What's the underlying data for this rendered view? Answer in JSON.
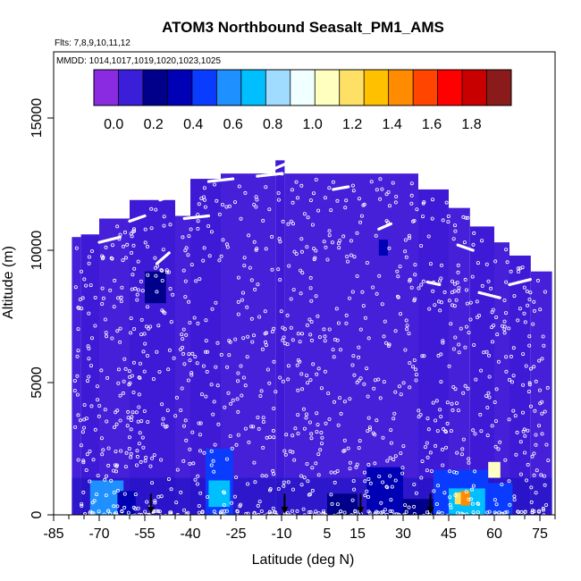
{
  "chart_data": {
    "type": "heatmap",
    "title": "ATOM3 Northbound Seasalt_PM1_AMS",
    "subtitle_flights": "Flts: 7,8,9,10,11,12",
    "subtitle_dates": "MMDD: 1014,1017,1019,1020,1023,1025",
    "xlabel": "Latitude (deg N)",
    "ylabel": "Altitude (m)",
    "xlim": [
      -85,
      80
    ],
    "ylim": [
      0,
      17500
    ],
    "x_tick_labels": [
      "-85",
      "-70",
      "-55",
      "-40",
      "-25",
      "-10",
      "5",
      "15",
      "30",
      "45",
      "60",
      "75"
    ],
    "x_tick_values": [
      -85,
      -70,
      -55,
      -40,
      -25,
      -10,
      5,
      15,
      30,
      45,
      60,
      75
    ],
    "y_tick_labels": [
      "0",
      "5000",
      "10000",
      "15000"
    ],
    "y_tick_values": [
      0,
      5000,
      10000,
      15000
    ],
    "colorbar": {
      "range": [
        -0.1,
        2.0
      ],
      "tick_labels": [
        "0.0",
        "0.2",
        "0.4",
        "0.6",
        "0.8",
        "1.0",
        "1.2",
        "1.4",
        "1.6",
        "1.8"
      ],
      "tick_values": [
        0,
        0.2,
        0.4,
        0.6,
        0.8,
        1.0,
        1.2,
        1.4,
        1.6,
        1.8
      ],
      "colors": [
        "#8a2be2",
        "#3a1ed8",
        "#00008b",
        "#0000b4",
        "#0a3cff",
        "#1e90ff",
        "#00bfff",
        "#9fdcff",
        "#f0ffff",
        "#ffffc0",
        "#ffe066",
        "#ffc000",
        "#ff8c00",
        "#ff4500",
        "#ff0000",
        "#c80000",
        "#8b1a1a"
      ]
    },
    "background_value": 0.05,
    "column_tops": [
      {
        "x0": -79,
        "x1": -76,
        "top": 10500
      },
      {
        "x0": -76,
        "x1": -70,
        "top": 10600
      },
      {
        "x0": -70,
        "x1": -60,
        "top": 11200
      },
      {
        "x0": -60,
        "x1": -45,
        "top": 11900
      },
      {
        "x0": -45,
        "x1": -40,
        "top": 11300
      },
      {
        "x0": -40,
        "x1": -30,
        "top": 12700
      },
      {
        "x0": -30,
        "x1": -12,
        "top": 12900
      },
      {
        "x0": -12,
        "x1": -9,
        "top": 13400
      },
      {
        "x0": -9,
        "x1": 35,
        "top": 12900
      },
      {
        "x0": 35,
        "x1": 45,
        "top": 12300
      },
      {
        "x0": 45,
        "x1": 52,
        "top": 11600
      },
      {
        "x0": 52,
        "x1": 60,
        "top": 10900
      },
      {
        "x0": 60,
        "x1": 65,
        "top": 10300
      },
      {
        "x0": 65,
        "x1": 72,
        "top": 9800
      },
      {
        "x0": 72,
        "x1": 79,
        "top": 9200
      }
    ],
    "hotspots": [
      {
        "x0": -73,
        "x1": -62,
        "y0": 0,
        "y1": 1300,
        "value": 0.55
      },
      {
        "x0": -64,
        "x1": -58,
        "y0": 0,
        "y1": 900,
        "value": 0.35
      },
      {
        "x0": -35,
        "x1": -26,
        "y0": 0,
        "y1": 2500,
        "value": 0.5
      },
      {
        "x0": -34,
        "x1": -27,
        "y0": 300,
        "y1": 1300,
        "value": 0.75
      },
      {
        "x0": 18,
        "x1": 30,
        "y0": 0,
        "y1": 1800,
        "value": 0.3
      },
      {
        "x0": 40,
        "x1": 58,
        "y0": 0,
        "y1": 1700,
        "value": 0.45
      },
      {
        "x0": 45,
        "x1": 57,
        "y0": 0,
        "y1": 1000,
        "value": 0.7
      },
      {
        "x0": 49,
        "x1": 52,
        "y0": 350,
        "y1": 900,
        "value": 1.45
      },
      {
        "x0": 47,
        "x1": 49,
        "y0": 400,
        "y1": 850,
        "value": 1.15
      },
      {
        "x0": 58,
        "x1": 62,
        "y0": 1400,
        "y1": 2000,
        "value": 1.1
      },
      {
        "x0": 58,
        "x1": 66,
        "y0": 0,
        "y1": 1200,
        "value": 0.4
      },
      {
        "x0": 5,
        "x1": 15,
        "y0": 0,
        "y1": 800,
        "value": 0.25
      },
      {
        "x0": 22,
        "x1": 25,
        "y0": 9800,
        "y1": 10400,
        "value": 0.3
      },
      {
        "x0": -55,
        "x1": -48,
        "y0": 8000,
        "y1": 9200,
        "value": 0.15
      },
      {
        "x0": 30,
        "x1": 40,
        "y0": 0,
        "y1": 600,
        "value": 0.2
      }
    ],
    "markers_latitude": [
      -53,
      -9,
      16,
      39
    ],
    "flight_tracks": [
      {
        "x": [
          -70,
          -63
        ],
        "y": [
          10300,
          10500
        ]
      },
      {
        "x": [
          -60,
          -55
        ],
        "y": [
          11100,
          11300
        ]
      },
      {
        "x": [
          -50,
          -45
        ],
        "y": [
          11900,
          12100
        ]
      },
      {
        "x": [
          -42,
          -34
        ],
        "y": [
          11200,
          11300
        ]
      },
      {
        "x": [
          -34,
          -26
        ],
        "y": [
          12600,
          12700
        ]
      },
      {
        "x": [
          -18,
          -10
        ],
        "y": [
          12800,
          12900
        ]
      },
      {
        "x": [
          -12,
          -8
        ],
        "y": [
          13100,
          13300
        ]
      },
      {
        "x": [
          7,
          12
        ],
        "y": [
          12300,
          12400
        ]
      },
      {
        "x": [
          22,
          26
        ],
        "y": [
          10800,
          11000
        ]
      },
      {
        "x": [
          48,
          53
        ],
        "y": [
          10200,
          10000
        ]
      },
      {
        "x": [
          55,
          62
        ],
        "y": [
          8400,
          8200
        ]
      },
      {
        "x": [
          65,
          72
        ],
        "y": [
          8700,
          8900
        ]
      },
      {
        "x": [
          -51,
          -47
        ],
        "y": [
          9500,
          9900
        ]
      },
      {
        "x": [
          38,
          42
        ],
        "y": [
          8800,
          8700
        ]
      }
    ]
  }
}
